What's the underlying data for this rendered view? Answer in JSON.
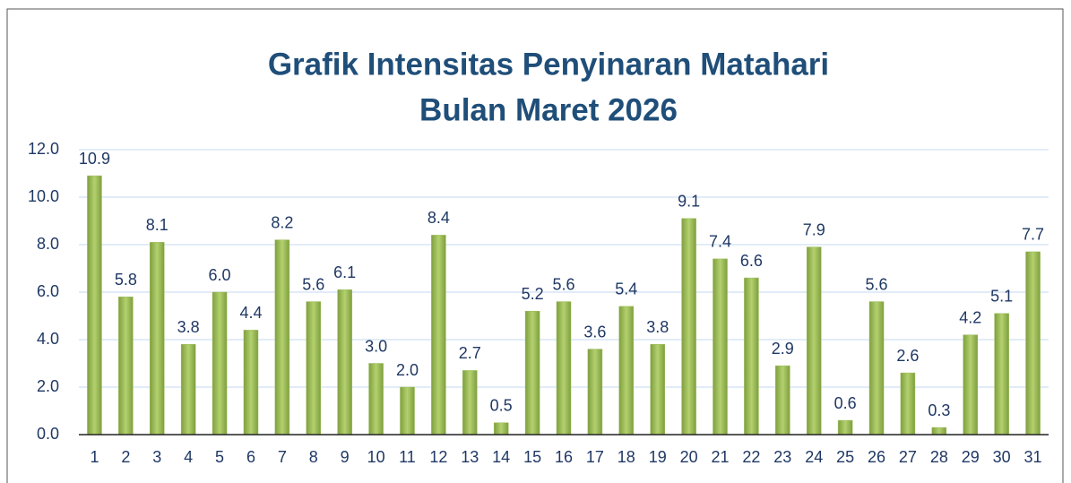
{
  "chart_data": {
    "type": "bar",
    "title": "Grafik Intensitas Penyinaran Matahari",
    "subtitle": "Bulan Maret 2026",
    "categories": [
      "1",
      "2",
      "3",
      "4",
      "5",
      "6",
      "7",
      "8",
      "9",
      "10",
      "11",
      "12",
      "13",
      "14",
      "15",
      "16",
      "17",
      "18",
      "19",
      "20",
      "21",
      "22",
      "23",
      "24",
      "25",
      "26",
      "27",
      "28",
      "29",
      "30",
      "31"
    ],
    "values": [
      10.9,
      5.8,
      8.1,
      3.8,
      6.0,
      4.4,
      8.2,
      5.6,
      6.1,
      3.0,
      2.0,
      8.4,
      2.7,
      0.5,
      5.2,
      5.6,
      3.6,
      5.4,
      3.8,
      9.1,
      7.4,
      6.6,
      2.9,
      7.9,
      0.6,
      5.6,
      2.6,
      0.3,
      4.2,
      5.1,
      7.7
    ],
    "value_labels": [
      "10.9",
      "5.8",
      "8.1",
      "3.8",
      "6.0",
      "4.4",
      "8.2",
      "5.6",
      "6.1",
      "3.0",
      "2.0",
      "8.4",
      "2.7",
      "0.5",
      "5.2",
      "5.6",
      "3.6",
      "5.4",
      "3.8",
      "9.1",
      "7.4",
      "6.6",
      "2.9",
      "7.9",
      "0.6",
      "5.6",
      "2.6",
      "0.3",
      "4.2",
      "5.1",
      "7.7"
    ],
    "color": "#9bbb59",
    "ylim": [
      0,
      12
    ],
    "yticks": [
      {
        "value": 0,
        "label": "0.0"
      },
      {
        "value": 2,
        "label": "2.0"
      },
      {
        "value": 4,
        "label": "4.0"
      },
      {
        "value": 6,
        "label": "6.0"
      },
      {
        "value": 8,
        "label": "8.0"
      },
      {
        "value": 10,
        "label": "10.0"
      },
      {
        "value": 12,
        "label": "12.0"
      }
    ],
    "grid": true
  }
}
